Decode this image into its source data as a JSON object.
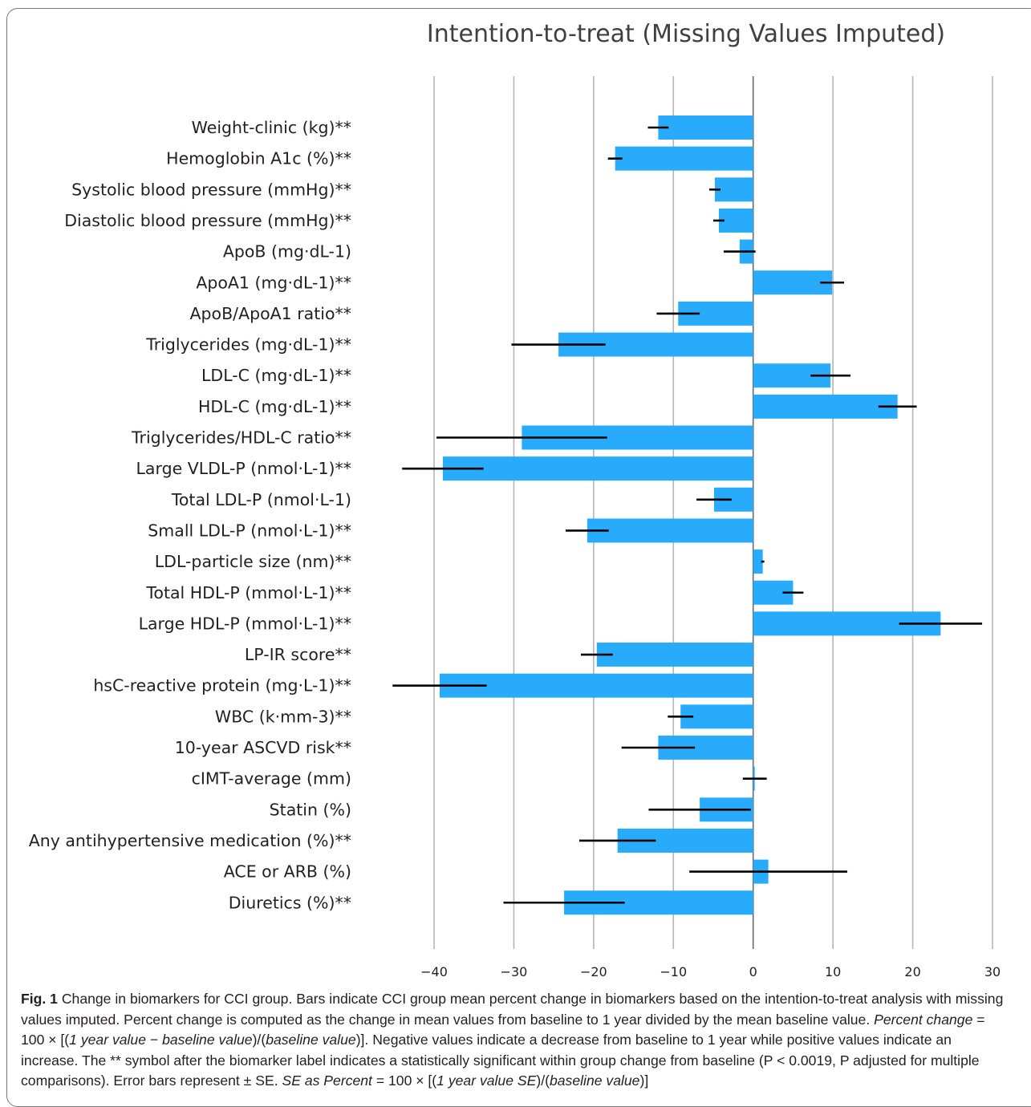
{
  "chart_data": {
    "type": "bar",
    "orientation": "horizontal",
    "title": "Intention-to-treat (Missing Values Imputed)",
    "xlim": [
      -40,
      30
    ],
    "xticks": [
      -40,
      -30,
      -20,
      -10,
      0,
      10,
      20,
      30
    ],
    "grid": true,
    "bar_color": "#29abfc",
    "errorbar_color": "#000000",
    "categories": [
      "Weight-clinic (kg)**",
      "Hemoglobin A1c (%)**",
      "Systolic blood pressure (mmHg)**",
      "Diastolic blood pressure (mmHg)**",
      "ApoB (mg·dL-1)",
      "ApoA1 (mg·dL-1)**",
      "ApoB/ApoA1 ratio**",
      "Triglycerides (mg·dL-1)**",
      "LDL-C (mg·dL-1)**",
      "HDL-C (mg·dL-1)**",
      "Triglycerides/HDL-C ratio**",
      "Large VLDL-P (nmol·L-1)**",
      "Total LDL-P (nmol·L-1)",
      "Small LDL-P (nmol·L-1)**",
      "LDL-particle size (nm)**",
      "Total HDL-P (mmol·L-1)**",
      "Large HDL-P (mmol·L-1)**",
      "LP-IR score**",
      "hsC-reactive protein (mg·L-1)**",
      "WBC (k·mm-3)**",
      "10-year ASCVD risk**",
      "cIMT-average (mm)",
      "Statin (%)",
      "Any antihypertensive medication (%)**",
      "ACE or ARB (%)",
      "Diuretics (%)**"
    ],
    "values": [
      -11.9,
      -17.3,
      -4.8,
      -4.3,
      -1.7,
      9.9,
      -9.4,
      -24.4,
      9.7,
      18.1,
      -29,
      -38.9,
      -4.9,
      -20.8,
      1.2,
      5,
      23.5,
      -19.6,
      -39.3,
      -9.1,
      -11.9,
      0.2,
      -6.7,
      -17,
      1.9,
      -23.7
    ],
    "errors": [
      1.3,
      0.9,
      0.7,
      0.7,
      2,
      1.5,
      2.7,
      5.9,
      2.5,
      2.4,
      10.7,
      5.1,
      2.2,
      2.7,
      0.2,
      1.3,
      5.2,
      2,
      5.9,
      1.6,
      4.6,
      1.5,
      6.4,
      4.8,
      9.9,
      7.6
    ]
  },
  "caption": {
    "fig_label": "Fig. 1",
    "part1": " Change in biomarkers for CCI group. Bars indicate CCI group mean percent change in biomarkers based on the intention-to-treat analysis with missing values imputed. Percent change is computed as the change in mean values from baseline to 1 year divided by the mean baseline value. ",
    "pc_label": "Percent change",
    "part2": " = 100 ×  [(",
    "pc_num": "1 year value",
    "part3": " − ",
    "pc_base": "baseline value",
    "part4": ")/(",
    "pc_den": "baseline value",
    "part5": ")]. Negative values indicate a decrease from baseline to 1 year while positive values indicate an increase. The ** symbol after the biomarker label indicates a statistically significant within group change from baseline (P < 0.0019, P adjusted for multiple comparisons). Error bars represent ± SE. ",
    "se_label": "SE as Percent",
    "part6": " = 100 × [(",
    "se_num": "1 year value SE",
    "part7": ")/(",
    "se_den": "baseline value",
    "part8": ")]"
  }
}
